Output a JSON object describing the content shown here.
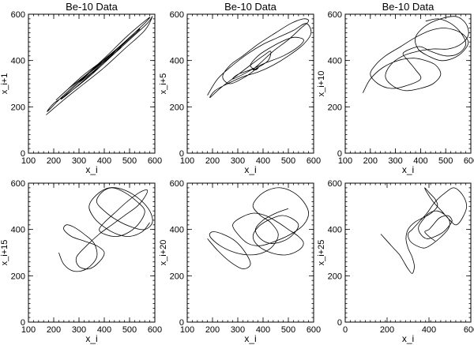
{
  "chart_data": [
    {
      "type": "line",
      "style": "phase-trajectory",
      "title": "Be-10 Data",
      "xlabel": "x_i",
      "ylabel": "x_i+1",
      "xlim": [
        100,
        600
      ],
      "ylim": [
        0,
        600
      ],
      "xticks": [
        "100",
        "200",
        "300",
        "400",
        "500",
        "600"
      ],
      "yticks": [
        "0",
        "200",
        "400",
        "600"
      ],
      "series": [
        {
          "x": [
            170,
            240,
            320,
            400,
            480,
            560,
            590,
            570,
            500,
            420,
            340,
            260,
            200,
            175,
            230,
            300,
            380,
            460,
            540,
            580,
            560,
            490,
            410,
            330,
            260,
            210,
            240,
            310,
            370,
            420,
            470,
            430,
            380,
            350,
            390,
            440,
            410,
            370,
            330,
            300,
            350,
            400,
            450,
            500,
            540,
            520,
            470,
            400,
            340,
            280,
            230,
            250,
            320,
            390,
            460,
            520
          ],
          "y": [
            165,
            230,
            300,
            370,
            450,
            530,
            590,
            560,
            490,
            410,
            330,
            260,
            215,
            180,
            240,
            310,
            380,
            460,
            540,
            585,
            570,
            505,
            420,
            340,
            280,
            230,
            260,
            330,
            380,
            420,
            460,
            420,
            370,
            345,
            385,
            430,
            405,
            365,
            330,
            305,
            355,
            400,
            450,
            495,
            535,
            520,
            470,
            405,
            345,
            285,
            235,
            250,
            315,
            385,
            455,
            515
          ]
        }
      ]
    },
    {
      "type": "line",
      "style": "phase-trajectory",
      "title": "Be-10 Data",
      "xlabel": "x_i",
      "ylabel": "x_i+5",
      "xlim": [
        100,
        600
      ],
      "ylim": [
        0,
        600
      ],
      "xticks": [
        "100",
        "200",
        "300",
        "400",
        "500",
        "600"
      ],
      "yticks": [
        "0",
        "200",
        "400",
        "600"
      ],
      "series": [
        {
          "x": [
            180,
            220,
            280,
            340,
            400,
            460,
            520,
            570,
            590,
            560,
            500,
            440,
            380,
            320,
            260,
            210,
            190,
            230,
            290,
            350,
            400,
            430,
            420,
            380,
            360,
            390,
            440,
            500,
            550,
            580,
            560,
            510,
            450,
            380,
            320,
            270,
            240,
            270,
            330,
            380,
            370,
            350,
            380,
            420,
            470,
            520,
            560,
            540,
            480,
            410,
            350,
            300,
            280,
            320,
            370
          ],
          "y": [
            250,
            320,
            380,
            430,
            470,
            500,
            530,
            560,
            520,
            470,
            420,
            380,
            350,
            330,
            300,
            270,
            240,
            280,
            330,
            380,
            420,
            440,
            400,
            370,
            360,
            390,
            440,
            490,
            540,
            570,
            580,
            560,
            520,
            470,
            420,
            380,
            330,
            300,
            330,
            370,
            360,
            380,
            420,
            450,
            480,
            500,
            490,
            460,
            420,
            390,
            360,
            340,
            320,
            340,
            370
          ]
        }
      ]
    },
    {
      "type": "line",
      "style": "phase-trajectory",
      "title": "Be-10 Data",
      "xlabel": "x_i",
      "ylabel": "x_i+10",
      "xlim": [
        100,
        600
      ],
      "ylim": [
        0,
        600
      ],
      "xticks": [
        "100",
        "200",
        "300",
        "400",
        "500",
        "600"
      ],
      "yticks": [
        "0",
        "200",
        "400",
        "600"
      ],
      "series": [
        {
          "x": [
            170,
            200,
            250,
            310,
            370,
            420,
            460,
            480,
            450,
            400,
            340,
            290,
            260,
            280,
            330,
            390,
            450,
            510,
            560,
            590,
            580,
            540,
            480,
            420,
            380,
            390,
            430,
            480,
            530,
            570,
            590,
            560,
            500,
            440,
            380,
            320,
            260,
            220,
            200,
            230,
            280,
            340,
            400,
            380,
            350,
            330,
            360,
            400,
            440,
            500,
            550,
            580,
            560,
            520,
            470,
            420
          ],
          "y": [
            260,
            320,
            370,
            400,
            410,
            400,
            380,
            340,
            300,
            280,
            270,
            290,
            330,
            380,
            420,
            440,
            450,
            450,
            470,
            510,
            560,
            590,
            580,
            550,
            500,
            450,
            420,
            400,
            410,
            440,
            480,
            520,
            540,
            530,
            500,
            460,
            420,
            380,
            340,
            300,
            280,
            290,
            320,
            360,
            400,
            430,
            450,
            460,
            440,
            420,
            430,
            470,
            520,
            560,
            580,
            570
          ]
        }
      ]
    },
    {
      "type": "line",
      "style": "phase-trajectory",
      "title": "",
      "xlabel": "x_i",
      "ylabel": "x_i+15",
      "xlim": [
        100,
        600
      ],
      "ylim": [
        0,
        600
      ],
      "xticks": [
        "100",
        "200",
        "300",
        "400",
        "500",
        "600"
      ],
      "yticks": [
        "0",
        "200",
        "400",
        "600"
      ],
      "series": [
        {
          "x": [
            220,
            240,
            280,
            330,
            370,
            360,
            320,
            280,
            250,
            240,
            270,
            320,
            370,
            400,
            380,
            340,
            300,
            290,
            330,
            380,
            430,
            480,
            530,
            560,
            570,
            540,
            490,
            440,
            400,
            380,
            400,
            450,
            500,
            540,
            560,
            530,
            480,
            430,
            390,
            370,
            400,
            450,
            510,
            560,
            590,
            580,
            540,
            480,
            420,
            370,
            340,
            360,
            400,
            450,
            500,
            550,
            580
          ],
          "y": [
            300,
            250,
            220,
            230,
            280,
            340,
            380,
            410,
            420,
            400,
            370,
            350,
            330,
            300,
            260,
            230,
            240,
            280,
            330,
            380,
            420,
            460,
            500,
            540,
            570,
            560,
            520,
            470,
            430,
            400,
            380,
            370,
            390,
            430,
            480,
            520,
            560,
            580,
            560,
            520,
            480,
            440,
            410,
            400,
            430,
            480,
            530,
            570,
            580,
            550,
            500,
            450,
            410,
            380,
            370,
            390,
            430
          ]
        }
      ]
    },
    {
      "type": "line",
      "style": "phase-trajectory",
      "title": "",
      "xlabel": "x_i",
      "ylabel": "x_i+20",
      "xlim": [
        100,
        600
      ],
      "ylim": [
        0,
        600
      ],
      "xticks": [
        "100",
        "200",
        "300",
        "400",
        "500",
        "600"
      ],
      "yticks": [
        "0",
        "200",
        "400",
        "600"
      ],
      "series": [
        {
          "x": [
            180,
            220,
            270,
            320,
            350,
            330,
            290,
            240,
            200,
            190,
            230,
            290,
            350,
            400,
            440,
            460,
            430,
            390,
            360,
            380,
            420,
            470,
            520,
            560,
            580,
            560,
            510,
            450,
            390,
            340,
            300,
            280,
            310,
            360,
            410,
            460,
            500,
            540,
            560,
            540,
            490,
            430,
            380,
            360,
            380,
            420,
            470,
            510,
            540,
            520,
            480,
            430,
            390,
            370,
            400,
            450,
            500
          ],
          "y": [
            360,
            310,
            260,
            230,
            250,
            300,
            350,
            380,
            390,
            370,
            330,
            300,
            290,
            300,
            330,
            380,
            430,
            460,
            500,
            540,
            570,
            580,
            560,
            520,
            470,
            420,
            380,
            350,
            330,
            340,
            380,
            420,
            450,
            470,
            460,
            430,
            400,
            370,
            340,
            310,
            290,
            300,
            330,
            370,
            410,
            440,
            460,
            450,
            420,
            380,
            350,
            340,
            360,
            400,
            440,
            470,
            490
          ]
        }
      ]
    },
    {
      "type": "line",
      "style": "phase-trajectory",
      "title": "",
      "xlabel": "x_i",
      "ylabel": "x_i+25",
      "xlim": [
        0,
        600
      ],
      "ylim": [
        0,
        600
      ],
      "xticks": [
        "0",
        "200",
        "400",
        "600"
      ],
      "yticks": [
        "0",
        "200",
        "400",
        "600"
      ],
      "series": [
        {
          "x": [
            170,
            200,
            230,
            260,
            280,
            300,
            320,
            330,
            320,
            300,
            290,
            300,
            330,
            370,
            410,
            440,
            430,
            400,
            380,
            390,
            420,
            460,
            500,
            530,
            560,
            580,
            560,
            520,
            480,
            430,
            390,
            350,
            320,
            300,
            310,
            340,
            380,
            420,
            460,
            490,
            500,
            480,
            440,
            400,
            370,
            350,
            360,
            390,
            430,
            470,
            500,
            510,
            490,
            450,
            420,
            400,
            380,
            400,
            430
          ],
          "y": [
            380,
            350,
            320,
            290,
            260,
            230,
            210,
            240,
            280,
            320,
            360,
            400,
            430,
            450,
            470,
            500,
            530,
            560,
            580,
            560,
            520,
            480,
            440,
            420,
            450,
            500,
            550,
            580,
            560,
            520,
            470,
            430,
            400,
            380,
            350,
            330,
            320,
            340,
            370,
            400,
            430,
            460,
            480,
            470,
            440,
            410,
            380,
            360,
            370,
            390,
            420,
            440,
            460,
            450,
            420,
            400,
            390,
            370,
            350
          ]
        }
      ]
    }
  ]
}
